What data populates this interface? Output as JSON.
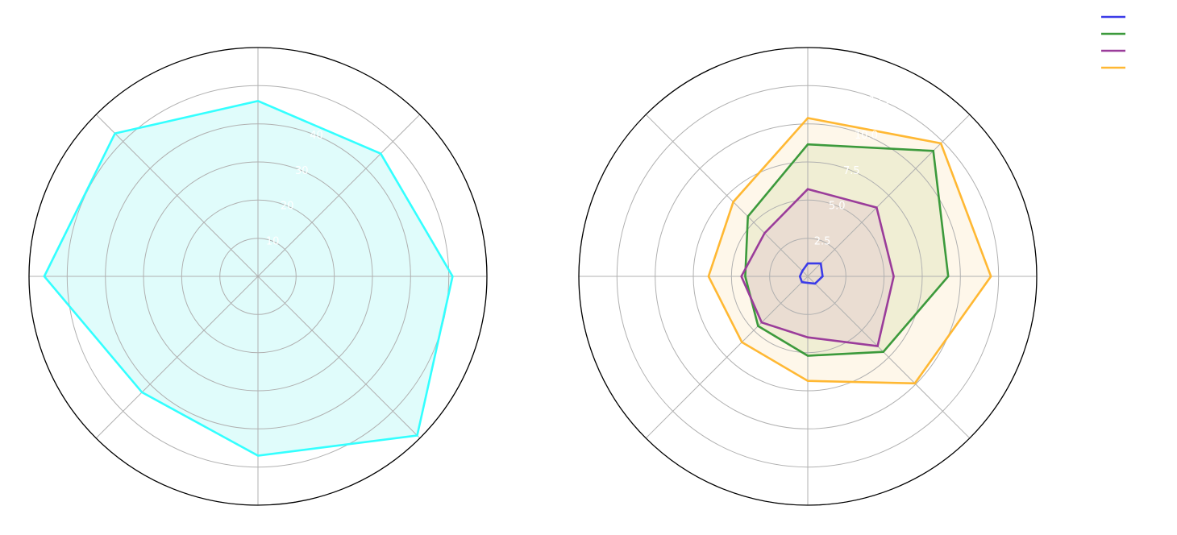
{
  "chart_data": [
    {
      "type": "radar",
      "categories": [
        "",
        "",
        "",
        "",
        "",
        "",
        "",
        ""
      ],
      "rmax": 60,
      "rticks": [
        10,
        20,
        30,
        40,
        50,
        60
      ],
      "rtick_labels": [
        "10",
        "20",
        "30",
        "40",
        "",
        ""
      ],
      "series": [
        {
          "color": "#33ffff",
          "fill": "#e0fcfb",
          "values": [
            46,
            45.5,
            51,
            59,
            47,
            43,
            56,
            53
          ]
        }
      ],
      "grid": true
    },
    {
      "type": "radar",
      "categories": [
        "",
        "",
        "",
        "",
        "",
        "",
        "",
        ""
      ],
      "rmax": 15,
      "rticks": [
        2.5,
        5,
        7.5,
        10,
        12.5,
        15
      ],
      "rtick_labels": [
        "2.5",
        "5.0",
        "7.5",
        "10.0",
        "12.5",
        ""
      ],
      "series": [
        {
          "color": "#3b3be8",
          "fill": "none",
          "values": [
            0.85,
            1.2,
            0.97,
            0.67,
            0.43,
            0.54,
            0.52,
            0.5
          ]
        },
        {
          "color": "#3c9a3c",
          "fill": "#c9dba6",
          "values": [
            8.65,
            11.63,
            9.2,
            7.0,
            5.2,
            4.6,
            4.1,
            5.55
          ]
        },
        {
          "color": "#9a3c9a",
          "fill": "#c9a6c9",
          "values": [
            5.72,
            6.38,
            5.63,
            6.47,
            4.0,
            4.27,
            4.35,
            4.0
          ]
        },
        {
          "color": "#ffb833",
          "fill": "#fdf0d8",
          "values": [
            10.38,
            12.33,
            12.0,
            9.92,
            6.85,
            6.1,
            6.5,
            6.9
          ]
        }
      ],
      "grid": true,
      "legend": {
        "placement": "top-right",
        "entries": [
          "",
          "",
          "",
          ""
        ]
      }
    }
  ]
}
